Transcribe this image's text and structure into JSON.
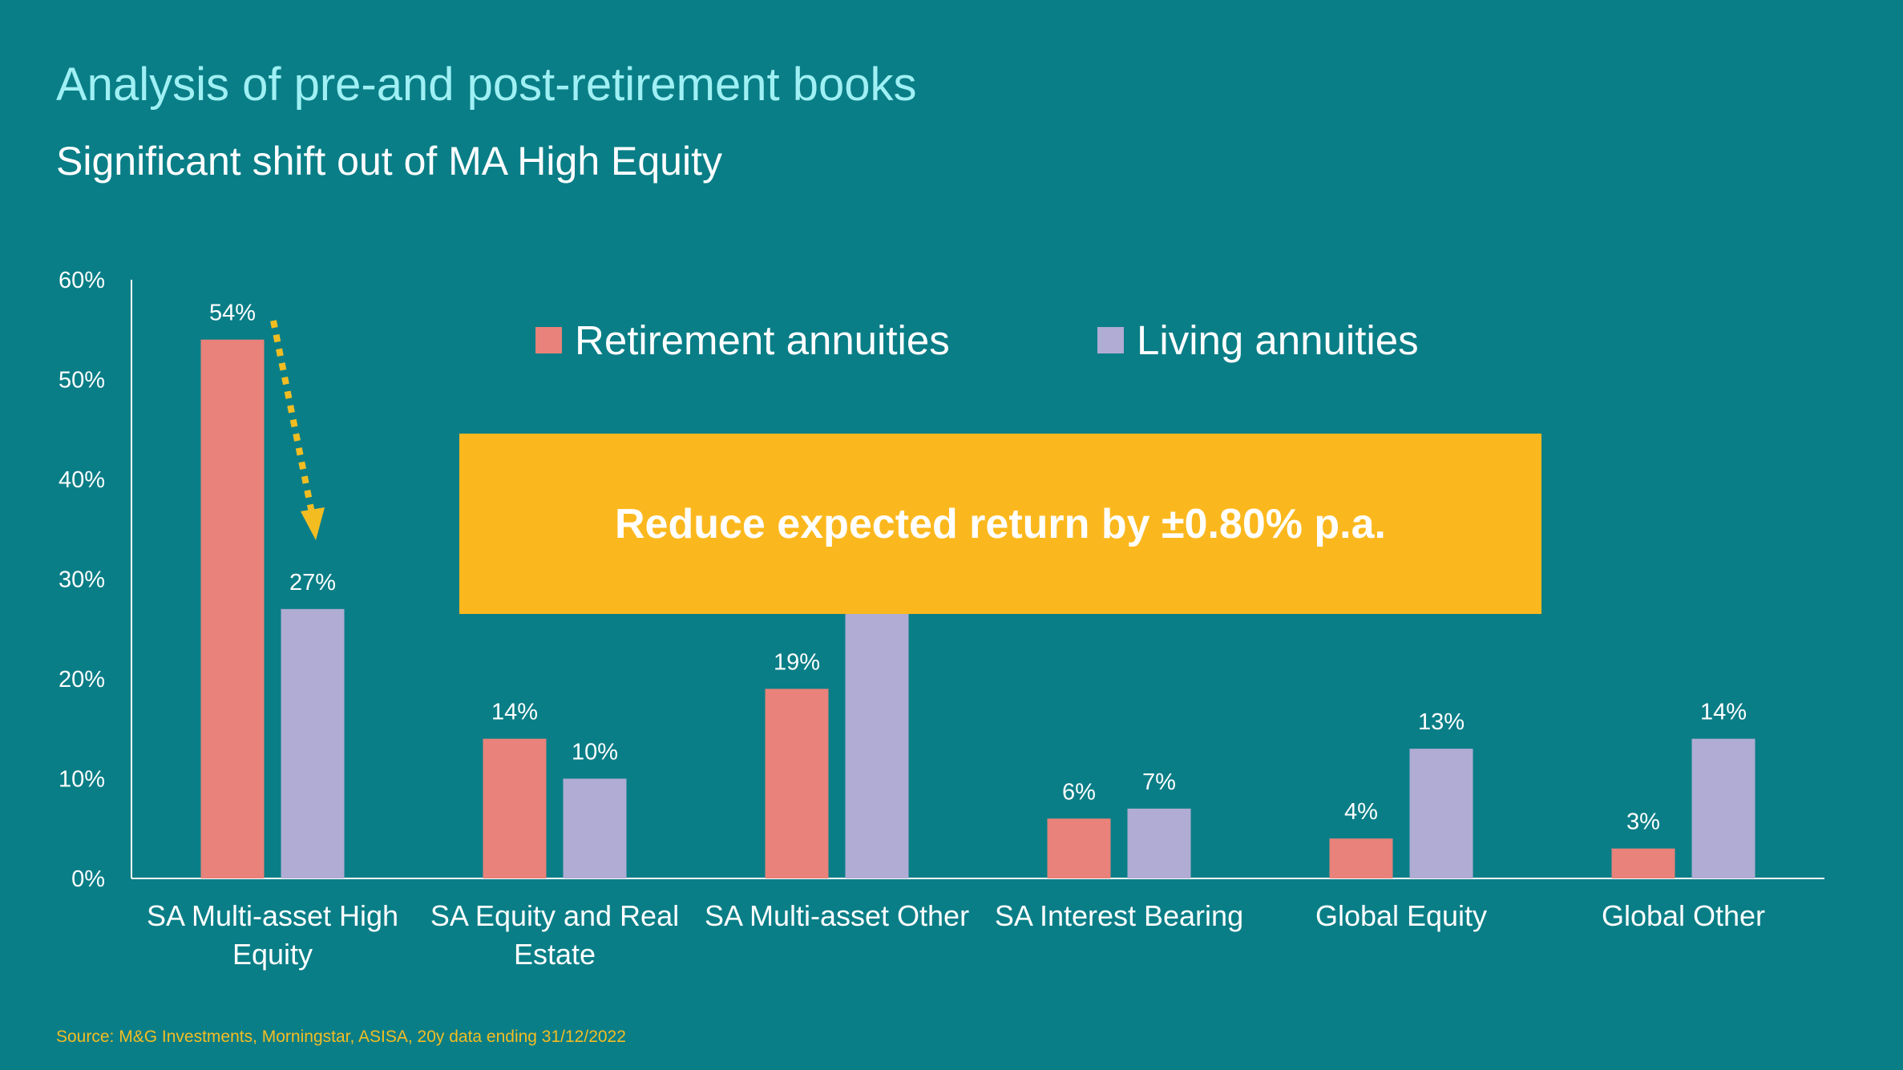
{
  "title": "Analysis of pre-and post-retirement books",
  "subtitle": "Significant shift out of MA High Equity",
  "callout": "Reduce expected return by ±0.80% p.a.",
  "source": "Source: M&G Investments, Morningstar, ASISA, 20y data ending 31/12/2022",
  "colors": {
    "background": "#0a7e87",
    "retirement": "#e8827a",
    "living": "#b0acd3",
    "callout": "#fbb81e",
    "arrow": "#f3bd22"
  },
  "chart_data": {
    "type": "bar",
    "categories": [
      [
        "SA Multi-asset High",
        "Equity"
      ],
      [
        "SA Equity and Real",
        "Estate"
      ],
      [
        "SA Multi-asset Other"
      ],
      [
        "SA Interest Bearing"
      ],
      [
        "Global Equity"
      ],
      [
        "Global  Other"
      ]
    ],
    "series": [
      {
        "name": "Retirement annuities",
        "values": [
          54,
          14,
          19,
          6,
          4,
          3
        ],
        "labels": [
          "54%",
          "14%",
          "19%",
          "6%",
          "4%",
          "3%"
        ]
      },
      {
        "name": "Living annuities",
        "values": [
          27,
          10,
          30,
          7,
          13,
          14
        ],
        "labels": [
          "27%",
          "10%",
          "",
          "7%",
          "13%",
          "14%"
        ]
      }
    ],
    "ylim": [
      0,
      60
    ],
    "yticks": [
      "0%",
      "10%",
      "20%",
      "30%",
      "40%",
      "50%",
      "60%"
    ],
    "legend_position": "top",
    "grid": false
  }
}
